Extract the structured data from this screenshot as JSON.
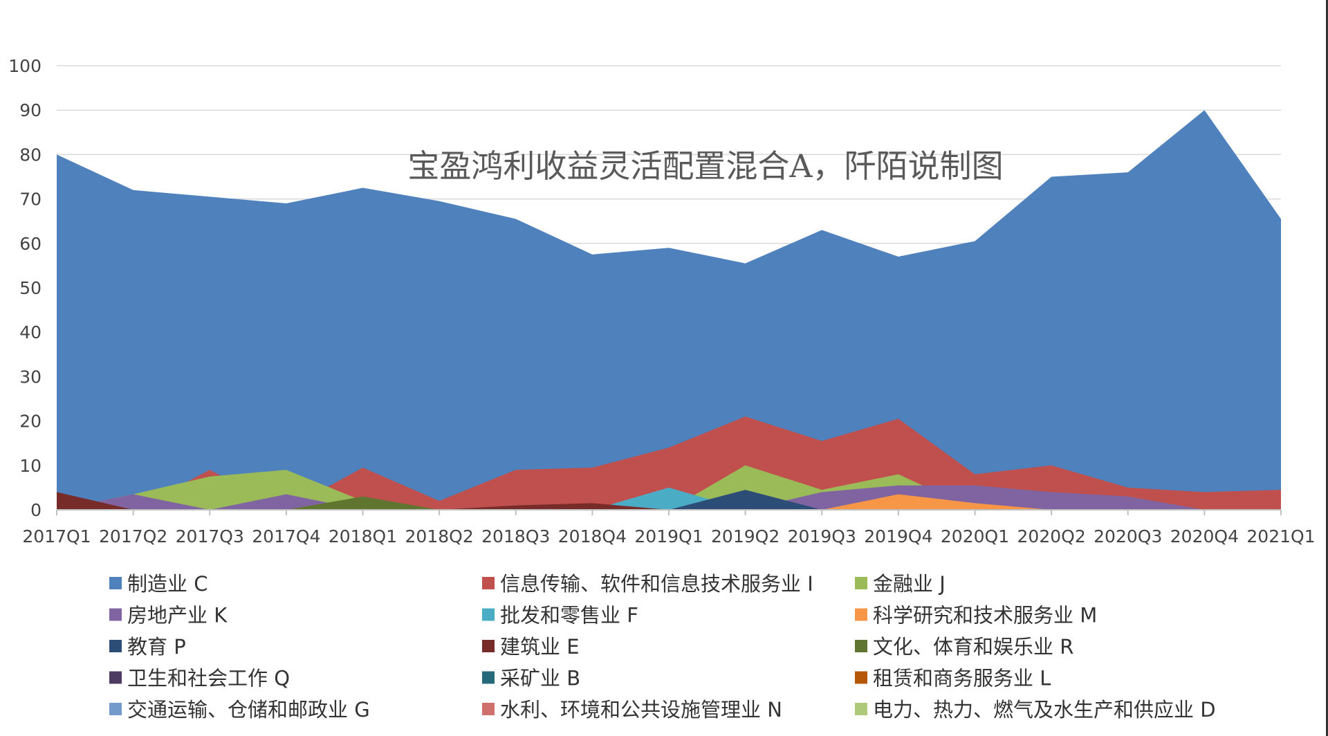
{
  "chart_data": {
    "type": "area",
    "title": "宝盈鸿利收益灵活配置混合A，阡陌说制图",
    "ylim": [
      0,
      100
    ],
    "yticks": [
      "0",
      "10",
      "20",
      "30",
      "40",
      "50",
      "60",
      "70",
      "80",
      "90",
      "100"
    ],
    "grid": true,
    "legend_position": "bottom",
    "categories": [
      "2017Q1",
      "2017Q2",
      "2017Q3",
      "2017Q4",
      "2018Q1",
      "2018Q2",
      "2018Q3",
      "2018Q4",
      "2019Q1",
      "2019Q2",
      "2019Q3",
      "2019Q4",
      "2020Q1",
      "2020Q2",
      "2020Q3",
      "2020Q4",
      "2021Q1"
    ],
    "series": [
      {
        "name": "制造业 C",
        "color": "#4f81bd",
        "values": [
          80,
          72,
          70.5,
          69,
          72.5,
          69.5,
          65.5,
          57.5,
          59,
          55.5,
          63,
          57,
          60.5,
          75,
          76,
          90,
          65.5
        ]
      },
      {
        "name": "信息传输、软件和信息技术服务业 I",
        "color": "#c0504d",
        "values": [
          0,
          0,
          9,
          0,
          9.5,
          2,
          9,
          9.5,
          14,
          21,
          15.5,
          20.5,
          8,
          10,
          5,
          4,
          4.5
        ]
      },
      {
        "name": "金融业 J",
        "color": "#9bbb59",
        "values": [
          0,
          3.5,
          7.5,
          9,
          2,
          0,
          0,
          0,
          0,
          10,
          4.5,
          8,
          0,
          0,
          0,
          0,
          0
        ]
      },
      {
        "name": "房地产业 K",
        "color": "#8064a2",
        "values": [
          0,
          3.5,
          0,
          3.5,
          0,
          0,
          0,
          0,
          0,
          0,
          4,
          5.5,
          5.5,
          4,
          3,
          0,
          0
        ]
      },
      {
        "name": "批发和零售业 F",
        "color": "#4bacc6",
        "values": [
          0,
          0,
          0,
          0,
          0,
          0,
          0,
          0,
          5,
          0,
          0,
          0,
          0,
          0,
          0,
          0,
          0
        ]
      },
      {
        "name": "科学研究和技术服务业 M",
        "color": "#f79646",
        "values": [
          0,
          0,
          0,
          0,
          0,
          0,
          0,
          0,
          0,
          0,
          0,
          3.5,
          1.5,
          0,
          0,
          0,
          0
        ]
      },
      {
        "name": "教育 P",
        "color": "#2c4d75",
        "values": [
          0,
          0,
          0,
          0,
          0,
          0,
          0,
          0,
          0,
          4.5,
          0,
          0,
          0,
          0,
          0,
          0,
          0
        ]
      },
      {
        "name": "建筑业 E",
        "color": "#772c2a",
        "values": [
          4,
          0,
          0,
          0,
          0,
          0,
          1,
          1.5,
          0,
          0,
          0,
          0,
          0,
          0,
          0,
          0,
          0
        ]
      },
      {
        "name": "文化、体育和娱乐业 R",
        "color": "#5f7530",
        "values": [
          0,
          0,
          0,
          0,
          3,
          0,
          0,
          0,
          0,
          0,
          0,
          0,
          0,
          0,
          0,
          0,
          0
        ]
      },
      {
        "name": "卫生和社会工作 Q",
        "color": "#4d3b62",
        "values": [
          0,
          0,
          0,
          0,
          0,
          0,
          0,
          0,
          0,
          0,
          0,
          0,
          0,
          0,
          0,
          0,
          0
        ]
      },
      {
        "name": "采矿业 B",
        "color": "#276a7c",
        "values": [
          0,
          0,
          0,
          0,
          0,
          0,
          0,
          0,
          0,
          0,
          0,
          0,
          0,
          0,
          0,
          0,
          0
        ]
      },
      {
        "name": "租赁和商务服务业 L",
        "color": "#b65708",
        "values": [
          0,
          0,
          0,
          0,
          0,
          0,
          0,
          0,
          0,
          0,
          0,
          0,
          0,
          0,
          0,
          0,
          0
        ]
      },
      {
        "name": "交通运输、仓储和邮政业 G",
        "color": "#729aca",
        "values": [
          0,
          0,
          0,
          0,
          0,
          0,
          0,
          0,
          0,
          0,
          0,
          0,
          0,
          0,
          0,
          0,
          0
        ]
      },
      {
        "name": "水利、环境和公共设施管理业 N",
        "color": "#d0706d",
        "values": [
          0,
          0,
          0,
          0,
          0,
          0,
          0,
          0,
          0,
          0,
          0,
          0,
          0,
          0,
          0,
          0,
          0
        ]
      },
      {
        "name": "电力、热力、燃气及水生产和供应业 D",
        "color": "#afc97a",
        "values": [
          0,
          0,
          0,
          0,
          0,
          0,
          0,
          0,
          0,
          0,
          0,
          0,
          0,
          0,
          0,
          0,
          0
        ]
      }
    ]
  }
}
